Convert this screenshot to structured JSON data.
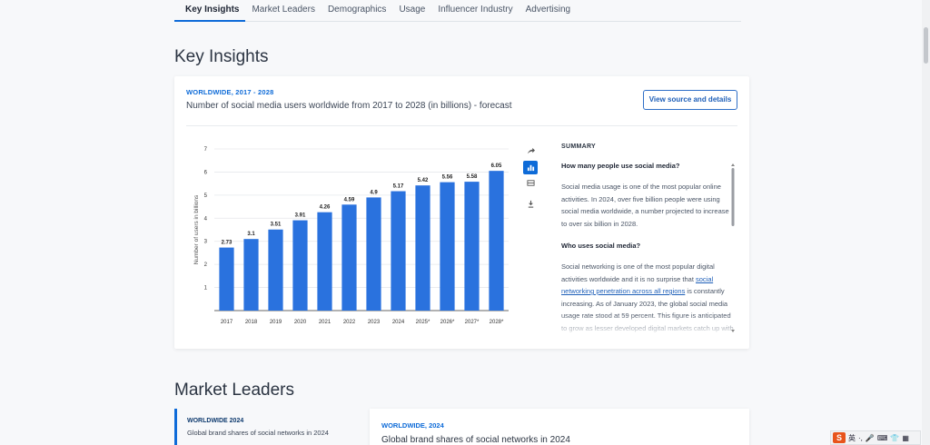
{
  "tabs": [
    "Key Insights",
    "Market Leaders",
    "Demographics",
    "Usage",
    "Influencer Industry",
    "Advertising"
  ],
  "active_tab": "Key Insights",
  "sections": {
    "key_insights": "Key Insights",
    "market_leaders": "Market Leaders"
  },
  "card": {
    "kicker": "WORLDWIDE, 2017 - 2028",
    "title": "Number of social media users worldwide from 2017 to 2028 (in billions) - forecast",
    "source_button": "View source and details"
  },
  "chart_data": {
    "type": "bar",
    "categories": [
      "2017",
      "2018",
      "2019",
      "2020",
      "2021",
      "2022",
      "2023",
      "2024",
      "2025*",
      "2026*",
      "2027*",
      "2028*"
    ],
    "values": [
      2.73,
      3.1,
      3.51,
      3.91,
      4.26,
      4.59,
      4.9,
      5.17,
      5.42,
      5.56,
      5.58,
      6.05
    ],
    "value_labels": [
      "2.73",
      "3.1",
      "3.51",
      "3.91",
      "4.26",
      "4.59",
      "4.9",
      "5.17",
      "5.42",
      "5.56",
      "5.58",
      "6.05"
    ],
    "yticks": [
      "1",
      "2",
      "3",
      "4",
      "5",
      "6",
      "7"
    ],
    "ylabel": "Number of users in billions",
    "ylim": [
      0,
      7
    ],
    "color": "#2a72de",
    "grid": true
  },
  "chart_tools": [
    "share-icon",
    "bar-chart-icon",
    "table-icon",
    "download-icon"
  ],
  "summary": {
    "heading": "SUMMARY",
    "q1": "How many people use social media?",
    "p1": "Social media usage is one of the most popular online activities. In 2024, over five billion people were using social media worldwide, a number projected to increase to over six billion in 2028.",
    "q2": "Who uses social media?",
    "p2_before": "Social networking is one of the most popular digital activities worldwide and it is no surprise that ",
    "p2_link": "social networking penetration across all regions",
    "p2_after": " is constantly increasing. As of January 2023, the global social media usage rate stood at 59 percent. This figure is anticipated to grow as lesser developed digital markets catch up with other regions when it"
  },
  "market_leaders": {
    "left_kicker": "WORLDWIDE 2024",
    "left_title": "Global brand shares of social networks in 2024",
    "card_kicker": "WORLDWIDE, 2024",
    "card_title": "Global brand shares of social networks in 2024"
  },
  "ime": {
    "logo": "S",
    "lang": "英"
  }
}
